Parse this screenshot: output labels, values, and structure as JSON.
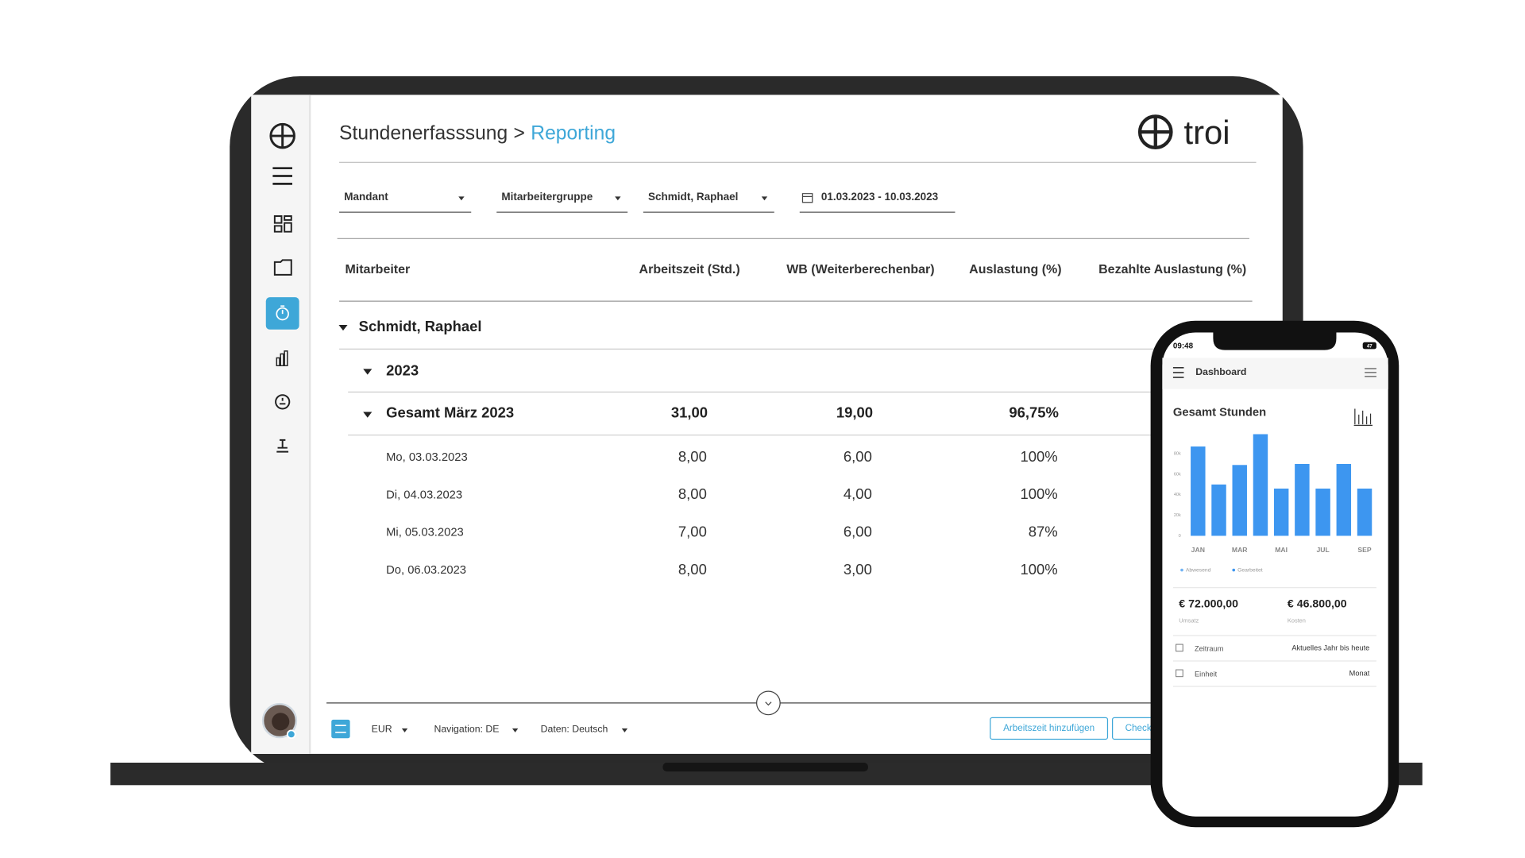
{
  "header": {
    "section": "Stundenerfasssung",
    "separator": ">",
    "current": "Reporting",
    "logo": "troi"
  },
  "filters": [
    "Mandant",
    "Mitarbeitergruppe",
    "Schmidt, Raphael",
    "01.03.2023 - 10.03.2023"
  ],
  "table": {
    "columns": [
      "Mitarbeiter",
      "Arbeitszeit (Std.)",
      "WB (Weiterberechenbar)",
      "Auslastung (%)",
      "Bezahlte Auslastung (%)"
    ],
    "group": "Schmidt, Raphael",
    "year": "2023",
    "total": [
      "Gesamt März 2023",
      "31,00",
      "19,00",
      "96,75%"
    ],
    "rows": [
      [
        "Mo, 03.03.2023",
        "8,00",
        "6,00",
        "100%"
      ],
      [
        "Di, 04.03.2023",
        "8,00",
        "4,00",
        "100%"
      ],
      [
        "Mi, 05.03.2023",
        "7,00",
        "6,00",
        "87%"
      ],
      [
        "Do, 06.03.2023",
        "8,00",
        "3,00",
        "100%"
      ]
    ]
  },
  "footer": {
    "currency": "EUR",
    "navigation": "Navigation: DE",
    "data": "Daten: Deutsch",
    "buttons": [
      "Arbeitszeit hinzufügen",
      "Check"
    ]
  },
  "phone": {
    "time": "09:48",
    "battery": "47",
    "title": "Dashboard",
    "stats": [
      {
        "value": "€ 72.000,00",
        "label": "Umsatz"
      },
      {
        "value": "€ 46.800,00",
        "label": "Kosten"
      }
    ],
    "settings": [
      {
        "label": "Zeitraum",
        "value": "Aktuelles Jahr bis heute"
      },
      {
        "label": "Einheit",
        "value": "Monat"
      }
    ]
  },
  "chart_data": {
    "type": "bar",
    "title": "Gesamt Stunden",
    "categories": [
      "JAN",
      null,
      "MAR",
      null,
      "MAI",
      null,
      "JUL",
      null,
      "SEP"
    ],
    "values": [
      87000,
      50000,
      69000,
      99000,
      46000,
      70000,
      46000,
      70000,
      46000
    ],
    "color": "#3d96f0",
    "ylim": [
      0,
      100000
    ],
    "yticks": [
      0,
      {
        "value": 20000,
        "label": "20k"
      },
      {
        "value": 40000,
        "label": "40k"
      },
      {
        "value": 60000,
        "label": "60k"
      },
      {
        "value": 80000,
        "label": "80k"
      }
    ],
    "legend": [
      {
        "name": "Abwesend",
        "color": "#6fb2f4"
      },
      {
        "name": "Gearbeitet",
        "color": "#3d96f0"
      }
    ]
  }
}
